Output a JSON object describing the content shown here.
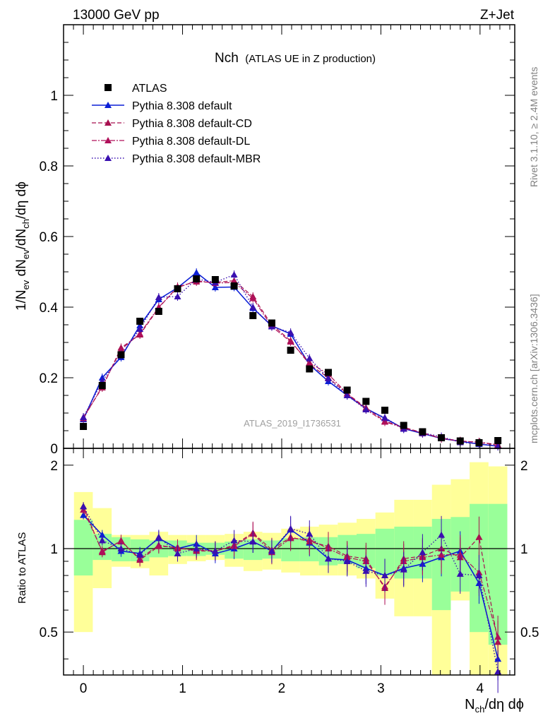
{
  "header": {
    "left": "13000 GeV pp",
    "right": "Z+Jet"
  },
  "title": {
    "main": "Nch",
    "sub": "(ATLAS UE in Z production)"
  },
  "side_labels": {
    "rivet": "Rivet 3.1.10, ≥ 2.4M events",
    "mcplots": "mcplots.cern.ch [arXiv:1306.3436]"
  },
  "watermark": "ATLAS_2019_I1736531",
  "colors": {
    "data": "#000000",
    "default": "#0b1fd6",
    "cd": "#a8104f",
    "dl": "#b0105a",
    "mbr": "#3a10b0",
    "band_outer": "#ffff99",
    "band_inner": "#99ff99"
  },
  "chart_data": [
    {
      "type": "line",
      "panel": "main",
      "ylabel": "1/N_ev dN_ev/dN_ch/dη dϕ",
      "xlim": [
        -0.2,
        4.35
      ],
      "ylim": [
        0,
        1.2
      ],
      "yticks": [
        "0",
        "0.2",
        "0.4",
        "0.6",
        "0.8",
        "1"
      ],
      "xticks": [
        "0",
        "1",
        "2",
        "3",
        "4"
      ],
      "x": [
        0.0,
        0.19,
        0.38,
        0.57,
        0.76,
        0.95,
        1.14,
        1.33,
        1.52,
        1.71,
        1.9,
        2.09,
        2.28,
        2.47,
        2.66,
        2.85,
        3.04,
        3.23,
        3.42,
        3.61,
        3.8,
        3.99,
        4.18
      ],
      "series": [
        {
          "name": "ATLAS",
          "marker": "square",
          "values": [
            0.062,
            0.178,
            0.265,
            0.36,
            0.388,
            0.452,
            0.48,
            0.478,
            0.46,
            0.376,
            0.355,
            0.278,
            0.225,
            0.215,
            0.165,
            0.133,
            0.108,
            0.065,
            0.047,
            0.03,
            0.021,
            0.016,
            0.022
          ]
        },
        {
          "name": "Pythia 8.308 default",
          "marker": "triangle",
          "values": [
            0.082,
            0.2,
            0.258,
            0.348,
            0.422,
            0.455,
            0.498,
            0.456,
            0.457,
            0.397,
            0.347,
            0.324,
            0.237,
            0.19,
            0.15,
            0.113,
            0.085,
            0.056,
            0.042,
            0.028,
            0.02,
            0.012,
            0.006
          ]
        },
        {
          "name": "Pythia 8.308 default-CD",
          "marker": "triangle",
          "values": [
            0.088,
            0.172,
            0.285,
            0.322,
            0.398,
            0.458,
            0.472,
            0.47,
            0.475,
            0.43,
            0.35,
            0.305,
            0.238,
            0.2,
            0.155,
            0.115,
            0.077,
            0.06,
            0.044,
            0.029,
            0.021,
            0.017,
            0.009
          ]
        },
        {
          "name": "Pythia 8.308 default-DL",
          "marker": "triangle",
          "values": [
            0.085,
            0.175,
            0.28,
            0.325,
            0.4,
            0.455,
            0.475,
            0.468,
            0.47,
            0.425,
            0.345,
            0.302,
            0.243,
            0.21,
            0.155,
            0.11,
            0.075,
            0.058,
            0.043,
            0.028,
            0.02,
            0.018,
            0.01
          ]
        },
        {
          "name": "Pythia 8.308 default-MBR",
          "marker": "triangle",
          "values": [
            0.088,
            0.19,
            0.265,
            0.338,
            0.428,
            0.43,
            0.48,
            0.47,
            0.492,
            0.4,
            0.345,
            0.328,
            0.255,
            0.198,
            0.15,
            0.11,
            0.087,
            0.055,
            0.044,
            0.033,
            0.017,
            0.013,
            0.006
          ]
        }
      ],
      "legend_position": "top-left"
    },
    {
      "type": "line",
      "panel": "ratio",
      "ylabel": "Ratio to ATLAS",
      "xlabel": "N_ch/dη dϕ",
      "xlim": [
        -0.2,
        4.35
      ],
      "ylim": [
        0.35,
        2.3
      ],
      "yscale": "log",
      "yticks": [
        "0.5",
        "1",
        "2"
      ],
      "xticks": [
        "0",
        "1",
        "2",
        "3",
        "4"
      ],
      "x": [
        0.0,
        0.19,
        0.38,
        0.57,
        0.76,
        0.95,
        1.14,
        1.33,
        1.52,
        1.71,
        1.9,
        2.09,
        2.28,
        2.47,
        2.66,
        2.85,
        3.04,
        3.23,
        3.42,
        3.61,
        3.8,
        3.99,
        4.18
      ],
      "band_outer": [
        [
          0.5,
          1.6
        ],
        [
          0.72,
          1.4
        ],
        [
          0.86,
          1.12
        ],
        [
          0.85,
          1.12
        ],
        [
          0.8,
          1.15
        ],
        [
          0.88,
          1.12
        ],
        [
          0.9,
          1.12
        ],
        [
          0.91,
          1.12
        ],
        [
          0.86,
          1.13
        ],
        [
          0.83,
          1.15
        ],
        [
          0.84,
          1.14
        ],
        [
          0.82,
          1.18
        ],
        [
          0.8,
          1.2
        ],
        [
          0.8,
          1.22
        ],
        [
          0.8,
          1.24
        ],
        [
          0.78,
          1.28
        ],
        [
          0.66,
          1.35
        ],
        [
          0.57,
          1.5
        ],
        [
          0.57,
          1.5
        ],
        [
          0.35,
          1.7
        ],
        [
          0.65,
          1.78
        ],
        [
          0.35,
          2.05
        ],
        [
          0.35,
          1.98
        ]
      ],
      "band_inner": [
        [
          0.8,
          1.27
        ],
        [
          0.91,
          1.13
        ],
        [
          0.9,
          1.1
        ],
        [
          0.9,
          1.08
        ],
        [
          0.93,
          1.07
        ],
        [
          0.94,
          1.07
        ],
        [
          0.94,
          1.05
        ],
        [
          0.95,
          1.05
        ],
        [
          0.92,
          1.06
        ],
        [
          0.91,
          1.08
        ],
        [
          0.92,
          1.07
        ],
        [
          0.9,
          1.09
        ],
        [
          0.9,
          1.1
        ],
        [
          0.87,
          1.1
        ],
        [
          0.88,
          1.12
        ],
        [
          0.85,
          1.13
        ],
        [
          0.8,
          1.18
        ],
        [
          0.78,
          1.2
        ],
        [
          0.78,
          1.2
        ],
        [
          0.6,
          1.28
        ],
        [
          0.7,
          1.3
        ],
        [
          0.5,
          1.45
        ],
        [
          0.45,
          1.45
        ]
      ],
      "series": [
        {
          "name": "Pythia 8.308 default",
          "values": [
            1.32,
            1.12,
            0.98,
            0.96,
            1.09,
            1.0,
            1.04,
            0.96,
            1.0,
            1.06,
            0.98,
            1.17,
            1.05,
            0.92,
            0.91,
            0.85,
            0.8,
            0.85,
            0.88,
            0.93,
            0.98,
            0.75,
            0.4
          ]
        },
        {
          "name": "Pythia 8.308 default-CD",
          "values": [
            1.42,
            0.97,
            1.07,
            0.91,
            1.02,
            1.01,
            0.98,
            0.98,
            1.03,
            1.14,
            0.99,
            1.1,
            1.06,
            1.02,
            0.94,
            0.92,
            0.72,
            0.92,
            0.94,
            1.0,
            0.93,
            1.1,
            0.46
          ]
        },
        {
          "name": "Pythia 8.308 default-DL",
          "values": [
            1.38,
            0.98,
            1.06,
            0.92,
            1.03,
            1.0,
            0.99,
            0.98,
            1.02,
            1.13,
            0.97,
            1.09,
            1.08,
            1.0,
            0.93,
            0.9,
            0.73,
            0.9,
            0.93,
            0.95,
            0.95,
            0.82,
            0.48
          ]
        },
        {
          "name": "Pythia 8.308 default-MBR",
          "values": [
            1.42,
            1.07,
            1.0,
            0.95,
            1.1,
            0.96,
            1.0,
            0.98,
            1.07,
            1.06,
            0.98,
            1.18,
            1.13,
            0.92,
            0.9,
            0.83,
            0.8,
            0.84,
            0.97,
            1.12,
            0.81,
            0.8,
            0.36
          ]
        }
      ]
    }
  ]
}
